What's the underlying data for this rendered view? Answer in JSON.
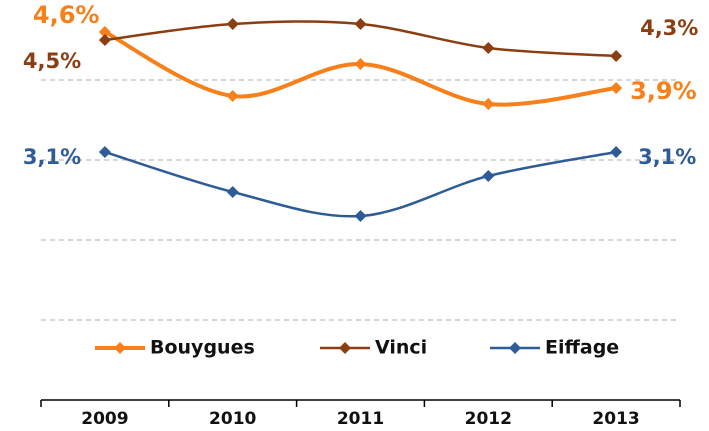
{
  "chart_data": {
    "type": "line",
    "categories": [
      "2009",
      "2010",
      "2011",
      "2012",
      "2013"
    ],
    "series": [
      {
        "name": "Bouygues",
        "color": "#f7801a",
        "values": [
          4.6,
          3.8,
          4.2,
          3.7,
          3.9
        ],
        "value_labels": [
          "4,6%",
          null,
          null,
          null,
          "3,9%"
        ]
      },
      {
        "name": "Vinci",
        "color": "#8b3e12",
        "values": [
          4.5,
          4.7,
          4.7,
          4.4,
          4.3
        ],
        "value_labels": [
          "4,5%",
          null,
          null,
          null,
          "4,3%"
        ]
      },
      {
        "name": "Eiffage",
        "color": "#2e5c96",
        "values": [
          3.1,
          2.6,
          2.3,
          2.8,
          3.1
        ],
        "value_labels": [
          "3,1%",
          null,
          null,
          null,
          "3,1%"
        ]
      }
    ],
    "ylim": [
      0,
      5
    ],
    "yticks": [
      1,
      2,
      3,
      4
    ],
    "grid": true,
    "legend": "bottom"
  }
}
